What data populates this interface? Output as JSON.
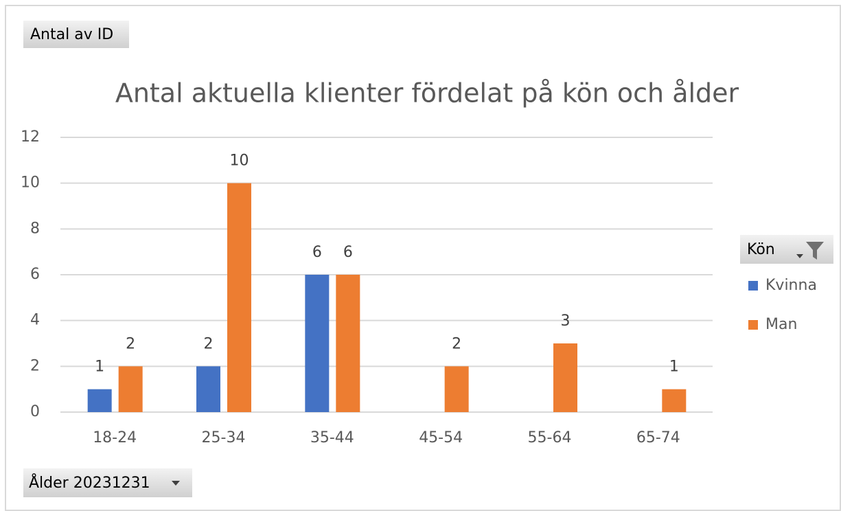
{
  "chart_data": {
    "type": "bar",
    "title": "Antal aktuella klienter fördelat på kön och ålder",
    "value_field": "Antal av ID",
    "axis_field": "Ålder 20231231",
    "legend_title": "Kön",
    "categories": [
      "18-24",
      "25-34",
      "35-44",
      "45-54",
      "55-64",
      "65-74"
    ],
    "series": [
      {
        "name": "Kvinna",
        "color": "#4472c4",
        "values": [
          1,
          2,
          6,
          null,
          null,
          null
        ]
      },
      {
        "name": "Man",
        "color": "#ed7d31",
        "values": [
          2,
          10,
          6,
          2,
          3,
          1
        ]
      }
    ],
    "ylim": [
      0,
      12
    ],
    "yticks": [
      0,
      2,
      4,
      6,
      8,
      10,
      12
    ],
    "grid": true,
    "legend": "right"
  }
}
